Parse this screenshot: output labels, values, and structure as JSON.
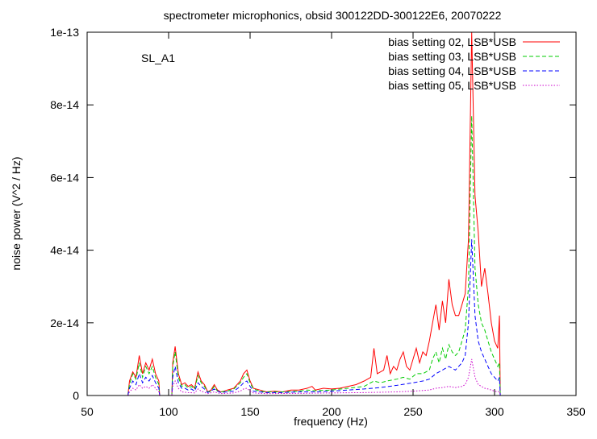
{
  "chart_data": {
    "type": "line",
    "title": "spectrometer microphonics, obsid 300122DD-300122E6, 20070222",
    "xlabel": "frequency (Hz)",
    "ylabel": "noise power (V^2 / Hz)",
    "annotation": "SL_A1",
    "xlim": [
      50,
      350
    ],
    "ylim": [
      0,
      1e-13
    ],
    "x_ticks": [
      50,
      100,
      150,
      200,
      250,
      300,
      350
    ],
    "x_tick_labels": [
      "50",
      "100",
      "150",
      "200",
      "250",
      "300",
      "350"
    ],
    "y_ticks": [
      0,
      2e-14,
      4e-14,
      6e-14,
      8e-14,
      1e-13
    ],
    "y_tick_labels": [
      "0",
      "2e-14",
      "4e-14",
      "6e-14",
      "8e-14",
      "1e-13"
    ],
    "grid": false,
    "legend_position": "top-right",
    "series": [
      {
        "name": "bias setting 02, LSB*USB",
        "color": "#ff0000",
        "dash": "solid",
        "points": [
          [
            75,
            0
          ],
          [
            76,
            4e-15
          ],
          [
            78,
            6.5e-15
          ],
          [
            80,
            5e-15
          ],
          [
            82,
            1.1e-14
          ],
          [
            84,
            6e-15
          ],
          [
            86,
            9e-15
          ],
          [
            88,
            7e-15
          ],
          [
            90,
            1e-14
          ],
          [
            92,
            6e-15
          ],
          [
            94,
            4e-15
          ],
          [
            94.5,
            0
          ],
          [
            102,
            0
          ],
          [
            102.5,
            9e-15
          ],
          [
            104,
            1.35e-14
          ],
          [
            106,
            6e-15
          ],
          [
            108,
            3e-15
          ],
          [
            110,
            3.5e-15
          ],
          [
            112,
            2.5e-15
          ],
          [
            114,
            3e-15
          ],
          [
            116,
            2e-15
          ],
          [
            118,
            6.5e-15
          ],
          [
            120,
            4e-15
          ],
          [
            122,
            3e-15
          ],
          [
            124,
            1e-15
          ],
          [
            126,
            1.5e-15
          ],
          [
            128,
            3e-15
          ],
          [
            130,
            1.5e-15
          ],
          [
            132,
            1e-15
          ],
          [
            134,
            1.2e-15
          ],
          [
            136,
            1.5e-15
          ],
          [
            140,
            2e-15
          ],
          [
            144,
            4e-15
          ],
          [
            146,
            6e-15
          ],
          [
            148,
            7e-15
          ],
          [
            150,
            4e-15
          ],
          [
            152,
            2e-15
          ],
          [
            156,
            1.5e-15
          ],
          [
            160,
            1e-15
          ],
          [
            165,
            1.2e-15
          ],
          [
            170,
            1e-15
          ],
          [
            175,
            1.5e-15
          ],
          [
            180,
            1.5e-15
          ],
          [
            185,
            2e-15
          ],
          [
            188,
            2.5e-15
          ],
          [
            190,
            1.5e-15
          ],
          [
            195,
            2e-15
          ],
          [
            200,
            1.8e-15
          ],
          [
            205,
            2e-15
          ],
          [
            210,
            2.5e-15
          ],
          [
            215,
            3e-15
          ],
          [
            220,
            4e-15
          ],
          [
            224,
            5e-15
          ],
          [
            226,
            1.3e-14
          ],
          [
            228,
            6e-15
          ],
          [
            232,
            7e-15
          ],
          [
            234,
            1.1e-14
          ],
          [
            236,
            6e-15
          ],
          [
            238,
            8e-15
          ],
          [
            240,
            7e-15
          ],
          [
            242,
            1e-14
          ],
          [
            244,
            1.2e-14
          ],
          [
            246,
            8e-15
          ],
          [
            248,
            7e-15
          ],
          [
            250,
            1e-14
          ],
          [
            252,
            1.3e-14
          ],
          [
            254,
            9e-15
          ],
          [
            256,
            1.2e-14
          ],
          [
            258,
            1.1e-14
          ],
          [
            260,
            1.5e-14
          ],
          [
            262,
            2e-14
          ],
          [
            264,
            2.5e-14
          ],
          [
            266,
            1.8e-14
          ],
          [
            268,
            2.6e-14
          ],
          [
            270,
            2e-14
          ],
          [
            272,
            3.2e-14
          ],
          [
            274,
            2.5e-14
          ],
          [
            276,
            2.2e-14
          ],
          [
            278,
            2.2e-14
          ],
          [
            280,
            2.5e-14
          ],
          [
            282,
            2.8e-14
          ],
          [
            284,
            4.3e-14
          ],
          [
            286,
            1e-13
          ],
          [
            288,
            5.5e-14
          ],
          [
            290,
            4.5e-14
          ],
          [
            292,
            3e-14
          ],
          [
            294,
            3.5e-14
          ],
          [
            296,
            2.8e-14
          ],
          [
            298,
            2e-14
          ],
          [
            300,
            1.5e-14
          ],
          [
            302,
            1.3e-14
          ],
          [
            303,
            2.2e-14
          ],
          [
            303.5,
            0
          ]
        ]
      },
      {
        "name": "bias setting 03, LSB*USB",
        "color": "#00cc00",
        "dash": "dashed",
        "points": [
          [
            75,
            0
          ],
          [
            76,
            3e-15
          ],
          [
            78,
            6e-15
          ],
          [
            80,
            4.5e-15
          ],
          [
            82,
            9e-15
          ],
          [
            84,
            5e-15
          ],
          [
            86,
            8e-15
          ],
          [
            88,
            6e-15
          ],
          [
            90,
            8e-15
          ],
          [
            92,
            5e-15
          ],
          [
            94,
            3e-15
          ],
          [
            94.5,
            0
          ],
          [
            102,
            0
          ],
          [
            102.5,
            8e-15
          ],
          [
            104,
            1.2e-14
          ],
          [
            106,
            5e-15
          ],
          [
            108,
            2.5e-15
          ],
          [
            110,
            3e-15
          ],
          [
            112,
            2e-15
          ],
          [
            114,
            2.5e-15
          ],
          [
            116,
            1.8e-15
          ],
          [
            118,
            5.5e-15
          ],
          [
            120,
            3.5e-15
          ],
          [
            122,
            2.5e-15
          ],
          [
            124,
            1e-15
          ],
          [
            126,
            1.2e-15
          ],
          [
            128,
            2.5e-15
          ],
          [
            130,
            1.2e-15
          ],
          [
            132,
            1e-15
          ],
          [
            136,
            1.2e-15
          ],
          [
            140,
            1.8e-15
          ],
          [
            144,
            3.5e-15
          ],
          [
            146,
            5e-15
          ],
          [
            148,
            6e-15
          ],
          [
            150,
            3.5e-15
          ],
          [
            152,
            1.8e-15
          ],
          [
            156,
            1.2e-15
          ],
          [
            160,
            1e-15
          ],
          [
            170,
            1e-15
          ],
          [
            180,
            1.2e-15
          ],
          [
            185,
            1.5e-15
          ],
          [
            190,
            1.3e-15
          ],
          [
            200,
            1.5e-15
          ],
          [
            210,
            2e-15
          ],
          [
            220,
            2.5e-15
          ],
          [
            226,
            4e-15
          ],
          [
            230,
            3.5e-15
          ],
          [
            234,
            4e-15
          ],
          [
            240,
            4.5e-15
          ],
          [
            244,
            5e-15
          ],
          [
            248,
            4.5e-15
          ],
          [
            252,
            6e-15
          ],
          [
            256,
            6e-15
          ],
          [
            260,
            7e-15
          ],
          [
            262,
            1e-14
          ],
          [
            264,
            1.2e-14
          ],
          [
            266,
            9e-15
          ],
          [
            268,
            1.3e-14
          ],
          [
            270,
            1e-14
          ],
          [
            272,
            1.4e-14
          ],
          [
            274,
            1.2e-14
          ],
          [
            276,
            1.1e-14
          ],
          [
            278,
            1.2e-14
          ],
          [
            280,
            1.5e-14
          ],
          [
            282,
            1.8e-14
          ],
          [
            284,
            3e-14
          ],
          [
            286,
            7.7e-14
          ],
          [
            288,
            3.5e-14
          ],
          [
            290,
            2.5e-14
          ],
          [
            292,
            2e-14
          ],
          [
            294,
            1.8e-14
          ],
          [
            296,
            1.5e-14
          ],
          [
            298,
            1.2e-14
          ],
          [
            300,
            1e-14
          ],
          [
            302,
            8e-15
          ],
          [
            303,
            9e-15
          ],
          [
            303.5,
            0
          ]
        ]
      },
      {
        "name": "bias setting 04, LSB*USB",
        "color": "#0000ff",
        "dash": "dashed",
        "points": [
          [
            75,
            0
          ],
          [
            76,
            2e-15
          ],
          [
            78,
            4e-15
          ],
          [
            80,
            3e-15
          ],
          [
            82,
            6e-15
          ],
          [
            84,
            3.5e-15
          ],
          [
            86,
            5e-15
          ],
          [
            88,
            4e-15
          ],
          [
            90,
            5.5e-15
          ],
          [
            92,
            3.5e-15
          ],
          [
            94,
            2e-15
          ],
          [
            94.5,
            0
          ],
          [
            102,
            0
          ],
          [
            102.5,
            5e-15
          ],
          [
            104,
            8e-15
          ],
          [
            106,
            3.5e-15
          ],
          [
            108,
            2e-15
          ],
          [
            110,
            2e-15
          ],
          [
            112,
            1.5e-15
          ],
          [
            114,
            1.8e-15
          ],
          [
            116,
            1.2e-15
          ],
          [
            118,
            3.5e-15
          ],
          [
            120,
            2.5e-15
          ],
          [
            122,
            1.8e-15
          ],
          [
            124,
            8e-16
          ],
          [
            128,
            1.8e-15
          ],
          [
            132,
            8e-16
          ],
          [
            136,
            1e-15
          ],
          [
            140,
            1.2e-15
          ],
          [
            144,
            2.5e-15
          ],
          [
            146,
            3.5e-15
          ],
          [
            148,
            4e-15
          ],
          [
            150,
            2.5e-15
          ],
          [
            152,
            1.2e-15
          ],
          [
            160,
            8e-16
          ],
          [
            170,
            8e-16
          ],
          [
            180,
            1e-15
          ],
          [
            190,
            1e-15
          ],
          [
            200,
            1.2e-15
          ],
          [
            210,
            1.5e-15
          ],
          [
            220,
            1.8e-15
          ],
          [
            230,
            2.2e-15
          ],
          [
            240,
            2.8e-15
          ],
          [
            250,
            3.5e-15
          ],
          [
            256,
            4e-15
          ],
          [
            260,
            4.5e-15
          ],
          [
            264,
            6e-15
          ],
          [
            268,
            7e-15
          ],
          [
            272,
            8e-15
          ],
          [
            276,
            7e-15
          ],
          [
            280,
            9e-15
          ],
          [
            282,
            1.1e-14
          ],
          [
            284,
            2e-14
          ],
          [
            286,
            4.3e-14
          ],
          [
            288,
            2.2e-14
          ],
          [
            290,
            1.5e-14
          ],
          [
            292,
            1.2e-14
          ],
          [
            294,
            1e-14
          ],
          [
            296,
            8e-15
          ],
          [
            298,
            6e-15
          ],
          [
            300,
            5e-15
          ],
          [
            302,
            4e-15
          ],
          [
            303,
            5e-15
          ],
          [
            303.5,
            0
          ]
        ]
      },
      {
        "name": "bias setting 05, LSB*USB",
        "color": "#cc00cc",
        "dash": "dotted",
        "points": [
          [
            75,
            0
          ],
          [
            76,
            1e-15
          ],
          [
            78,
            2e-15
          ],
          [
            80,
            1.5e-15
          ],
          [
            82,
            3e-15
          ],
          [
            84,
            2e-15
          ],
          [
            86,
            2.5e-15
          ],
          [
            88,
            2e-15
          ],
          [
            90,
            3e-15
          ],
          [
            92,
            2e-15
          ],
          [
            94,
            1e-15
          ],
          [
            94.5,
            0
          ],
          [
            102,
            0
          ],
          [
            102.5,
            2.5e-15
          ],
          [
            104,
            4e-15
          ],
          [
            106,
            2e-15
          ],
          [
            108,
            1e-15
          ],
          [
            112,
            8e-16
          ],
          [
            116,
            7e-16
          ],
          [
            118,
            1.8e-15
          ],
          [
            120,
            1.2e-15
          ],
          [
            124,
            5e-16
          ],
          [
            128,
            1e-15
          ],
          [
            132,
            5e-16
          ],
          [
            140,
            7e-16
          ],
          [
            144,
            1.2e-15
          ],
          [
            146,
            1.8e-15
          ],
          [
            148,
            2e-15
          ],
          [
            150,
            1.2e-15
          ],
          [
            152,
            7e-16
          ],
          [
            160,
            5e-16
          ],
          [
            180,
            6e-16
          ],
          [
            200,
            7e-16
          ],
          [
            220,
            8e-16
          ],
          [
            240,
            1e-15
          ],
          [
            250,
            1.2e-15
          ],
          [
            260,
            1.5e-15
          ],
          [
            264,
            2e-15
          ],
          [
            268,
            2.2e-15
          ],
          [
            272,
            2.5e-15
          ],
          [
            276,
            2.2e-15
          ],
          [
            280,
            2.5e-15
          ],
          [
            282,
            3e-15
          ],
          [
            284,
            5e-15
          ],
          [
            286,
            1e-14
          ],
          [
            288,
            5e-15
          ],
          [
            290,
            3e-15
          ],
          [
            292,
            2.5e-15
          ],
          [
            294,
            2e-15
          ],
          [
            296,
            1.8e-15
          ],
          [
            298,
            1.5e-15
          ],
          [
            300,
            1.2e-15
          ],
          [
            302,
            1e-15
          ],
          [
            303,
            1.2e-15
          ],
          [
            303.5,
            0
          ]
        ]
      }
    ]
  }
}
